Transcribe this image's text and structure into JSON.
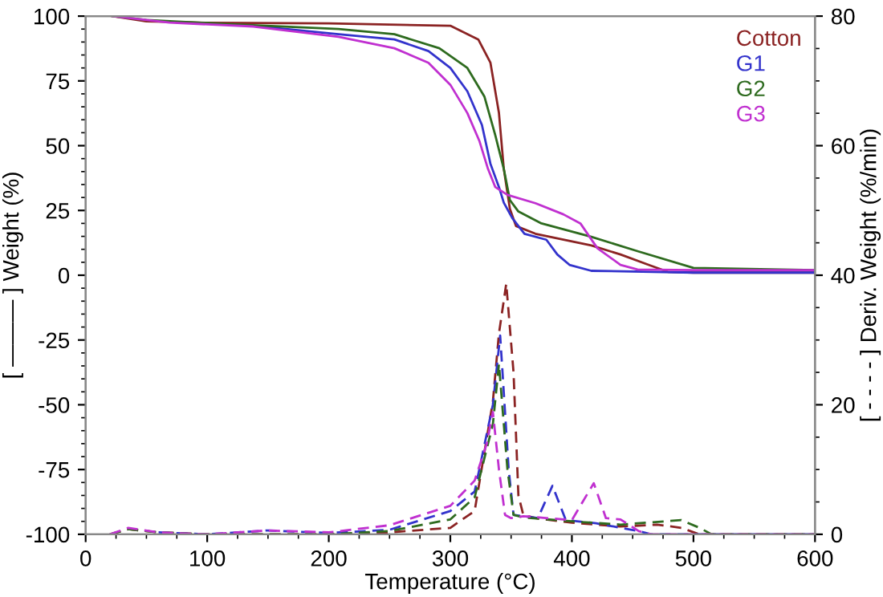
{
  "chart_data": {
    "type": "line",
    "xlabel": "Temperature (°C)",
    "ylabel": "[ ——— ] Weight (%)",
    "y2label": "[ - - - - ] Deriv. Weight (%/min)",
    "xlim": [
      0,
      600
    ],
    "xticks": [
      0,
      100,
      200,
      300,
      400,
      500,
      600
    ],
    "ylim": [
      -100,
      100
    ],
    "yticks": [
      -100,
      -75,
      -50,
      -25,
      0,
      25,
      50,
      75,
      100
    ],
    "y2lim": [
      0,
      80
    ],
    "y2ticks": [
      0,
      20,
      40,
      60,
      80
    ],
    "grid": false,
    "legend": "top right",
    "series": [
      {
        "name": "Cotton",
        "color": "#8b2323",
        "line_style": "solid",
        "x": [
          22,
          50,
          100,
          200,
          300,
          323,
          333,
          340,
          344,
          349,
          354,
          370,
          416,
          440,
          463,
          479,
          500,
          600
        ],
        "values": [
          100,
          98,
          97.4,
          97.2,
          96.3,
          91,
          82,
          62.6,
          41,
          25.6,
          19,
          16,
          11.5,
          8,
          4,
          1.3,
          1,
          1
        ]
      },
      {
        "name": "G1",
        "color": "#3333cc",
        "line_style": "solid",
        "x": [
          80,
          138,
          208,
          254,
          282,
          300,
          314,
          326,
          333,
          340,
          344,
          351,
          361,
          379,
          388,
          398,
          416,
          500,
          600
        ],
        "values": [
          97.5,
          96.3,
          93,
          91,
          86.5,
          80,
          71,
          58,
          43,
          34,
          28,
          22,
          16,
          13.7,
          8,
          4,
          1.7,
          1,
          1
        ]
      },
      {
        "name": "G2",
        "color": "#2e6b1f",
        "line_style": "solid",
        "x": [
          22,
          50,
          115,
          208,
          254,
          291,
          314,
          328,
          337,
          344,
          349,
          356,
          375,
          416,
          454,
          500,
          600
        ],
        "values": [
          100,
          98.5,
          97,
          95,
          93,
          87.6,
          80,
          69,
          54,
          41,
          29,
          24.6,
          20,
          14.8,
          9.3,
          2.8,
          2
        ]
      },
      {
        "name": "G3",
        "color": "#c030d0",
        "line_style": "solid",
        "x": [
          22,
          50,
          69,
          138,
          208,
          254,
          282,
          300,
          314,
          324,
          331,
          337,
          347,
          370,
          393,
          407,
          421,
          440,
          454,
          500,
          600
        ],
        "values": [
          100,
          98.5,
          97.5,
          96,
          92,
          87.6,
          82,
          73.5,
          62.6,
          51.7,
          41,
          34,
          31,
          27.8,
          23.5,
          20,
          10.4,
          4,
          2.2,
          2,
          2
        ]
      },
      {
        "color": "#8b2323",
        "line_style": "dashed",
        "axis": "y2",
        "x": [
          20,
          35,
          60,
          100,
          200,
          250,
          300,
          320,
          335,
          340,
          346,
          352,
          356,
          360,
          370,
          400,
          440,
          470,
          490,
          505,
          600
        ],
        "values": [
          0,
          0.8,
          0.3,
          0,
          0,
          0.3,
          1,
          3.6,
          20.5,
          31,
          38.7,
          25,
          6,
          3,
          2.5,
          1.8,
          1.2,
          1.5,
          1,
          0,
          0
        ]
      },
      {
        "color": "#3333cc",
        "line_style": "dashed",
        "axis": "y2",
        "x": [
          60,
          100,
          150,
          200,
          250,
          300,
          320,
          335,
          341,
          348,
          352,
          360,
          372,
          384,
          395,
          420,
          455,
          465,
          600
        ],
        "values": [
          0.3,
          0,
          0.6,
          0.2,
          0.7,
          3.6,
          6.6,
          20,
          30.7,
          10,
          3,
          2.8,
          2.5,
          7.5,
          2.2,
          1.7,
          0.5,
          0,
          0
        ]
      },
      {
        "color": "#2e6b1f",
        "line_style": "dashed",
        "axis": "y2",
        "x": [
          20,
          35,
          60,
          100,
          200,
          250,
          300,
          320,
          335,
          340,
          347,
          352,
          360,
          400,
          440,
          490,
          505,
          515,
          600
        ],
        "values": [
          0,
          0.8,
          0.3,
          0,
          0,
          0.5,
          2.3,
          5.7,
          17,
          26.3,
          10,
          3,
          2.6,
          2,
          1.5,
          2.2,
          1,
          0,
          0
        ]
      },
      {
        "color": "#c030d0",
        "line_style": "dashed",
        "axis": "y2",
        "x": [
          20,
          35,
          60,
          100,
          150,
          200,
          250,
          300,
          320,
          330,
          335,
          340,
          345,
          350,
          360,
          400,
          418,
          428,
          440,
          455,
          465,
          600
        ],
        "values": [
          0,
          1,
          0.3,
          0,
          0.6,
          0.3,
          1.4,
          4.4,
          8.3,
          14,
          18.9,
          10,
          3,
          2.5,
          2.8,
          2.2,
          7.9,
          2.5,
          2.3,
          0.5,
          0,
          0
        ]
      }
    ]
  }
}
